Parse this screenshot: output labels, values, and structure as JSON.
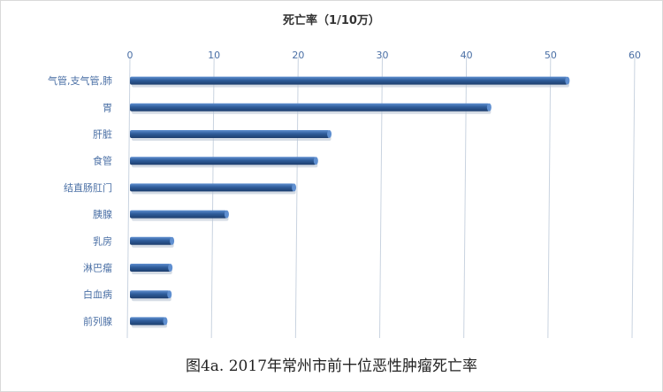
{
  "chart_data": {
    "type": "bar",
    "orientation": "horizontal",
    "axis_title": "死亡率（1/10万）",
    "caption": "图4a. 2017年常州市前十位恶性肿瘤死亡率",
    "xlim": [
      0,
      60
    ],
    "xticks": [
      "0",
      "10",
      "20",
      "30",
      "40",
      "50",
      "60"
    ],
    "x_axis_position": "top",
    "grid": true,
    "categories": [
      "气管,支气管,肺",
      "胃",
      "肝脏",
      "食管",
      "结直肠肛门",
      "胰腺",
      "乳房",
      "淋巴瘤",
      "白血病",
      "前列腺"
    ],
    "values": [
      52.0,
      42.7,
      23.7,
      22.1,
      19.5,
      11.5,
      5.0,
      4.8,
      4.7,
      4.2
    ],
    "colors": {
      "bar": "#2f5d9b",
      "bar_light": "#5f8fd0",
      "bar_dark": "#1d3e6e",
      "tick": "#4a6fa5",
      "grid": "#c9d3e0"
    }
  }
}
